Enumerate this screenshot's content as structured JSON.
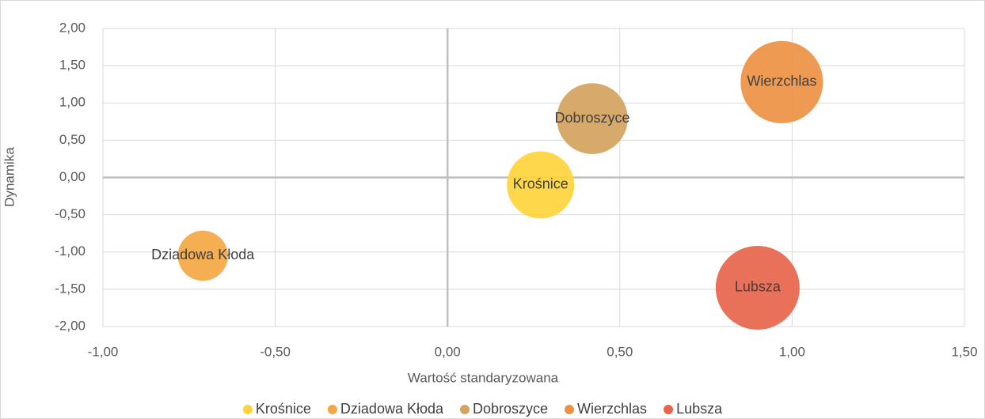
{
  "chart_data": {
    "type": "bubble",
    "x_label": "Wartość standaryzowana",
    "y_label": "Dynamika",
    "xlim": [
      -1,
      1.5
    ],
    "ylim": [
      -2,
      2
    ],
    "xticks": [
      {
        "value": -1,
        "label": "-1,00"
      },
      {
        "value": -0.5,
        "label": "-0,50"
      },
      {
        "value": 0,
        "label": "0,00"
      },
      {
        "value": 0.5,
        "label": "0,50"
      },
      {
        "value": 1,
        "label": "1,00"
      },
      {
        "value": 1.5,
        "label": "1,50"
      }
    ],
    "yticks": [
      {
        "value": 2,
        "label": "2,00"
      },
      {
        "value": 1.5,
        "label": "1,50"
      },
      {
        "value": 1,
        "label": "1,00"
      },
      {
        "value": 0.5,
        "label": "0,50"
      },
      {
        "value": 0,
        "label": "0,00"
      },
      {
        "value": -0.5,
        "label": "-0,50"
      },
      {
        "value": -1,
        "label": "-1,00"
      },
      {
        "value": -1.5,
        "label": "-1,50"
      },
      {
        "value": -2,
        "label": "-2,00"
      }
    ],
    "grid": true,
    "legend": "bottom",
    "series": [
      {
        "name": "Krośnice",
        "color": "#FFD43B",
        "x": [
          0.27
        ],
        "values": [
          -0.1
        ],
        "sizes": [
          1.8
        ]
      },
      {
        "name": "Dziadowa Kłoda",
        "color": "#F4A742",
        "x": [
          -0.71
        ],
        "values": [
          -1.05
        ],
        "sizes": [
          1.0
        ]
      },
      {
        "name": "Dobroszyce",
        "color": "#D4A35E",
        "x": [
          0.42
        ],
        "values": [
          0.79
        ],
        "sizes": [
          2.0
        ]
      },
      {
        "name": "Wierzchlas",
        "color": "#EE9144",
        "x": [
          0.97
        ],
        "values": [
          1.28
        ],
        "sizes": [
          2.7
        ]
      },
      {
        "name": "Lubsza",
        "color": "#E8654B",
        "x": [
          0.9
        ],
        "values": [
          -1.48
        ],
        "sizes": [
          2.8
        ]
      }
    ]
  }
}
